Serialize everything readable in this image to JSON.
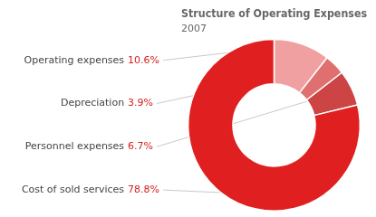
{
  "chart_data": {
    "type": "donut",
    "title": "Structure of Operating Expenses",
    "subtitle": "2007",
    "categories": [
      "Operating expenses",
      "Depreciation",
      "Personnel expenses",
      "Cost of sold services"
    ],
    "values": [
      10.6,
      3.9,
      6.7,
      78.8
    ],
    "value_labels": [
      "10.6%",
      "3.9%",
      "6.7%",
      "78.8%"
    ],
    "colors": [
      "#f0a0a0",
      "#e07070",
      "#cc4444",
      "#e02020"
    ],
    "data_labels": true
  }
}
